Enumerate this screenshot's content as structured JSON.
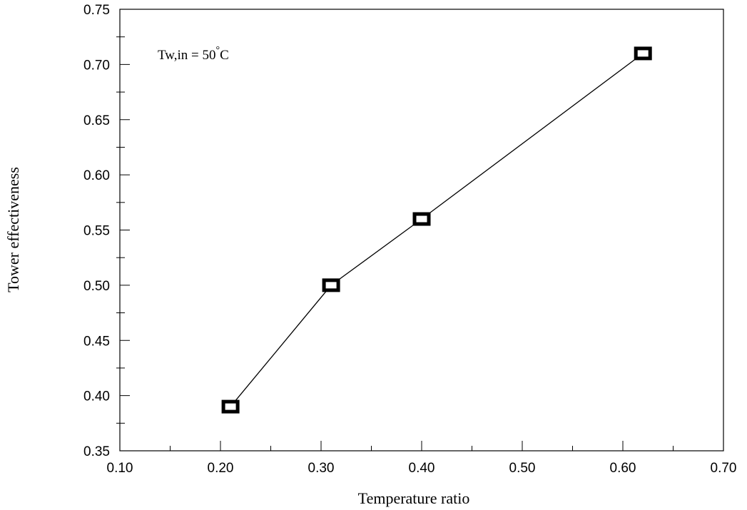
{
  "chart_data": {
    "type": "line",
    "xlabel": "Temperature ratio",
    "ylabel": "Tower effectiveness",
    "xlim": [
      0.1,
      0.7
    ],
    "ylim": [
      0.35,
      0.75
    ],
    "xticks": [
      "0.10",
      "0.20",
      "0.30",
      "0.40",
      "0.50",
      "0.60",
      "0.70"
    ],
    "yticks": [
      "0.35",
      "0.40",
      "0.45",
      "0.50",
      "0.55",
      "0.60",
      "0.65",
      "0.70",
      "0.75"
    ],
    "annotation": {
      "text": "Tw,in = 50",
      "degree": "°",
      "unit": "C"
    },
    "grid": false,
    "series": [
      {
        "x": [
          0.21,
          0.31,
          0.4,
          0.62
        ],
        "y": [
          0.39,
          0.5,
          0.56,
          0.71
        ],
        "marker": "square",
        "color": "#000000"
      }
    ]
  }
}
